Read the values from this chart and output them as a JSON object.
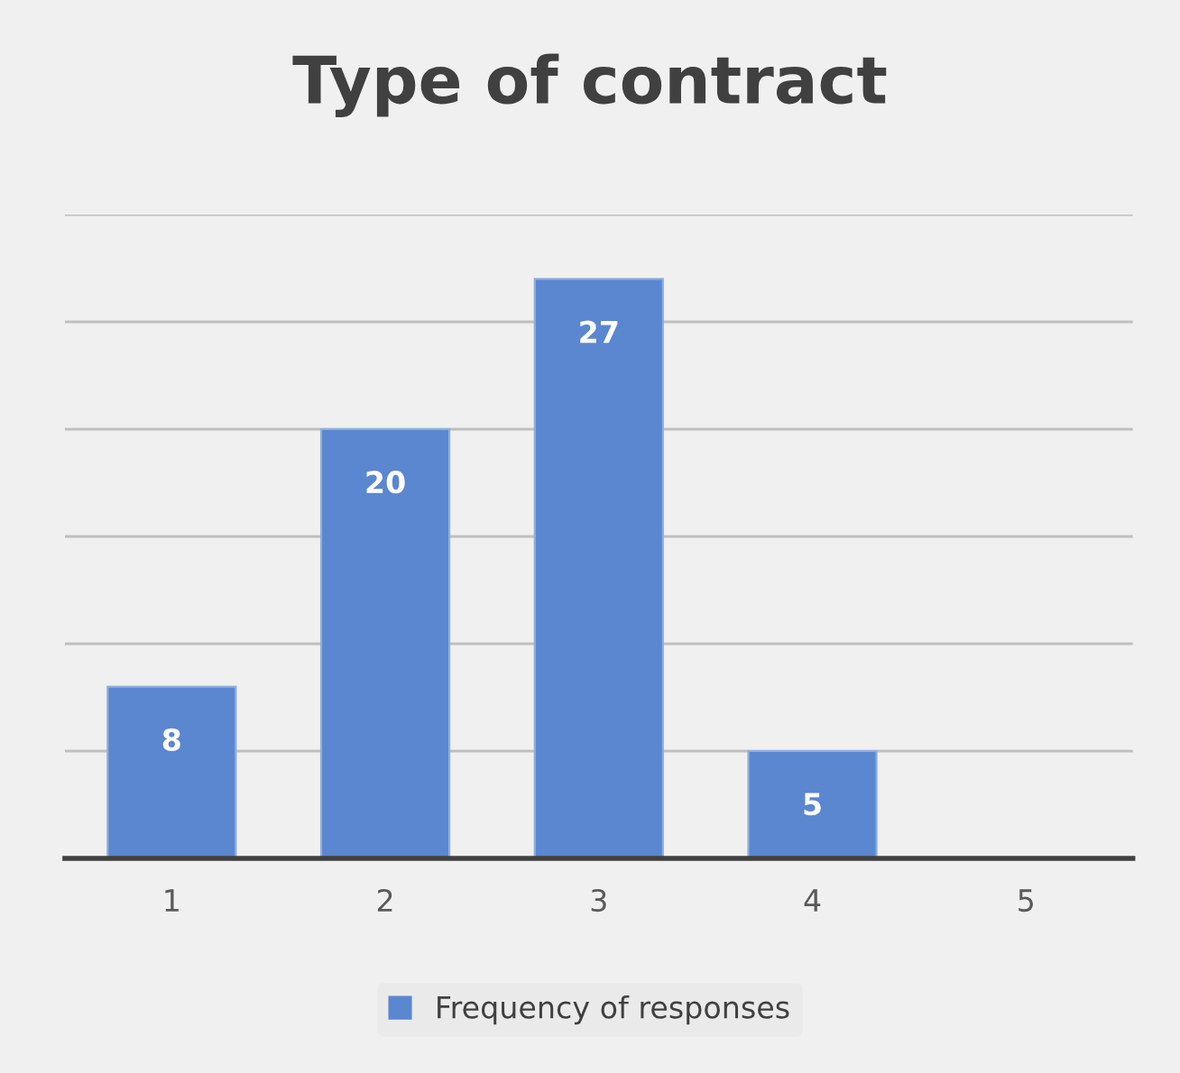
{
  "chart_data": {
    "type": "bar",
    "title": "Type of contract",
    "categories": [
      "1",
      "2",
      "3",
      "4",
      "5"
    ],
    "series": [
      {
        "name": "Frequency of responses",
        "color": "#5b86d0",
        "values": [
          8,
          20,
          27,
          5,
          null
        ],
        "value_labels": [
          "8",
          "20",
          "27",
          "5",
          null
        ]
      }
    ],
    "ylim": [
      0,
      30
    ],
    "yticks": [
      {
        "value": 0,
        "label": null
      },
      {
        "value": 5,
        "label": null
      },
      {
        "value": 10,
        "label": null
      },
      {
        "value": 15,
        "label": null
      },
      {
        "value": 20,
        "label": null
      },
      {
        "value": 25,
        "label": null
      },
      {
        "value": 30,
        "label": null
      }
    ],
    "tick_labels": "x",
    "grid": "y",
    "legend": "bottom"
  }
}
